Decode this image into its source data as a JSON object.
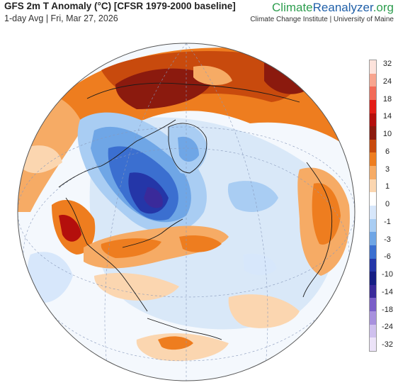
{
  "header": {
    "title": "GFS 2m T Anomaly (°C) [CFSR 1979-2000 baseline]",
    "subtitle": "1-day Avg | Fri, Mar 27, 2026"
  },
  "branding": {
    "logo_part1": "Climate",
    "logo_part2": "Reanalyzer",
    "logo_part3": ".org",
    "institute": "Climate Change Institute | University of Maine"
  },
  "legend": {
    "labels": [
      "32",
      "24",
      "18",
      "14",
      "10",
      "6",
      "3",
      "1",
      "0",
      "-1",
      "-3",
      "-6",
      "-10",
      "-14",
      "-18",
      "-24",
      "-32"
    ],
    "colors": [
      "#fde3dc",
      "#f8a58f",
      "#f26b58",
      "#e31d16",
      "#b40f0c",
      "#8b1a0e",
      "#c84a0d",
      "#ee7d1f",
      "#f6ab65",
      "#fbd6b0",
      "#ffffff",
      "#d7e7fb",
      "#a9cdf3",
      "#6fa6e6",
      "#3b6fd0",
      "#2436a8",
      "#161e84",
      "#3a2a9a",
      "#7a5ec8",
      "#a891de",
      "#cfc0ee",
      "#ece3f8"
    ]
  },
  "map": {
    "projection": "orthographic",
    "center": "North Atlantic / Arctic"
  }
}
